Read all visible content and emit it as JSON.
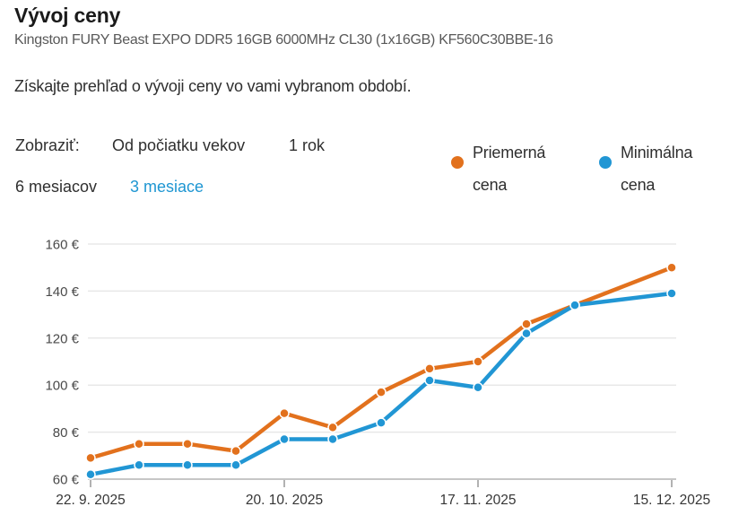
{
  "header": {
    "title": "Vývoj ceny",
    "product": "Kingston FURY Beast EXPO DDR5 16GB 6000MHz CL30 (1x16GB) KF560C30BBE-16",
    "description": "Získajte prehľad o vývoji ceny vo vami vybranom období."
  },
  "filters": {
    "label": "Zobraziť:",
    "options": [
      {
        "label": "Od počiatku vekov",
        "active": false
      },
      {
        "label": "1 rok",
        "active": false
      },
      {
        "label": "6 mesiacov",
        "active": false
      },
      {
        "label": "3 mesiace",
        "active": true
      }
    ],
    "active_color": "#1e96d2"
  },
  "legend": {
    "items": [
      {
        "label": "Priemerná cena",
        "dot_icon": "circle-dot-orange",
        "color": "#e2711d"
      },
      {
        "label": "Minimálna cena",
        "dot_icon": "circle-dot-blue",
        "color": "#2196d4"
      }
    ]
  },
  "chart_data": {
    "type": "line",
    "title": "Vývoj ceny",
    "x_dates": [
      "22. 9. 2025",
      "29. 9. 2025",
      "6. 10. 2025",
      "13. 10. 2025",
      "20. 10. 2025",
      "27. 10. 2025",
      "3. 11. 2025",
      "10. 11. 2025",
      "17. 11. 2025",
      "24. 11. 2025",
      "1. 12. 2025",
      "15. 12. 2025"
    ],
    "week_index": [
      0,
      1,
      2,
      3,
      4,
      5,
      6,
      7,
      8,
      9,
      10,
      12
    ],
    "x_tick_labels": [
      "22. 9. 2025",
      "20. 10. 2025",
      "17. 11. 2025",
      "15. 12. 2025"
    ],
    "x_tick_weeks": [
      0,
      4,
      8,
      12
    ],
    "series": [
      {
        "name": "Priemerná cena",
        "color": "#e2711d",
        "values": [
          69,
          75,
          75,
          72,
          88,
          82,
          97,
          107,
          110,
          126,
          134,
          150
        ]
      },
      {
        "name": "Minimálna cena",
        "color": "#2196d4",
        "values": [
          62,
          66,
          66,
          66,
          77,
          77,
          84,
          102,
          99,
          122,
          134,
          139
        ]
      }
    ],
    "ylim": [
      60,
      160
    ],
    "yticks": [
      60,
      80,
      100,
      120,
      140,
      160
    ],
    "ytick_suffix": " €",
    "grid": true,
    "legend_position": "top-right",
    "grid_color": "#e8e8e8",
    "axis_color": "#c6c6c6",
    "tick_color": "#999999"
  }
}
